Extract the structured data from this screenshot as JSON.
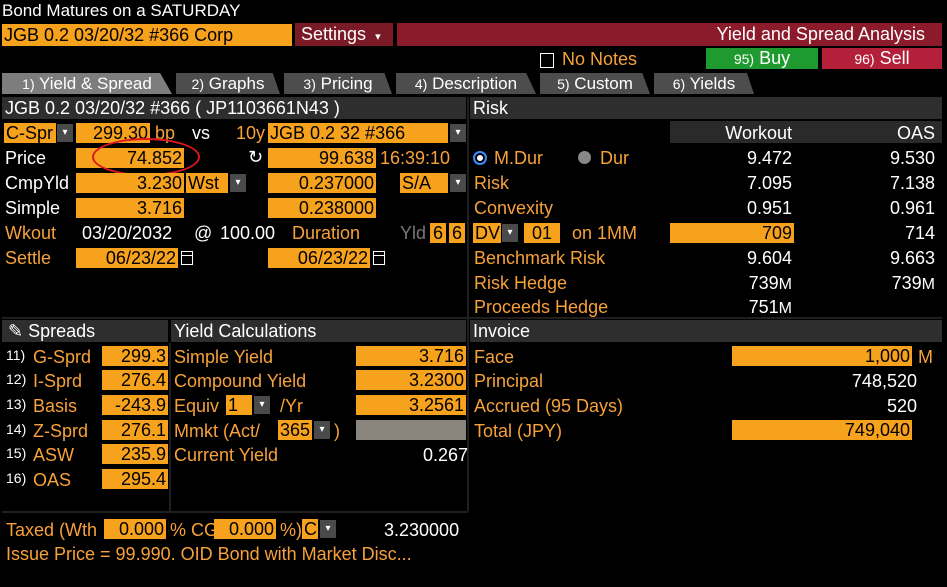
{
  "title": "Bond Matures on a SATURDAY",
  "security_field": "JGB 0.2 03/20/32 #366 Corp",
  "settings_label": "Settings",
  "settings_arrow": "▾",
  "function_title": "Yield and Spread Analysis",
  "notes": {
    "icon": "note-icon",
    "label": "No Notes"
  },
  "buy": {
    "num": "95)",
    "label": "Buy"
  },
  "sell": {
    "num": "96)",
    "label": "Sell"
  },
  "tabs": [
    {
      "num": "1)",
      "label": "Yield & Spread"
    },
    {
      "num": "2)",
      "label": "Graphs"
    },
    {
      "num": "3)",
      "label": "Pricing"
    },
    {
      "num": "4)",
      "label": "Description"
    },
    {
      "num": "5)",
      "label": "Custom"
    },
    {
      "num": "6)",
      "label": "Yields"
    }
  ],
  "bond_header": "JGB 0.2 03/20/32 #366 ( JP1103661N43 )",
  "left": {
    "spread_type": "C-Spr",
    "spread_value": "299.30",
    "spread_unit": "bp",
    "vs": "vs",
    "benchmark_tenor": "10y",
    "benchmark": "JGB 0.2 32 #366",
    "price_label": "Price",
    "price": "74.852",
    "bench_price": "99.638",
    "bench_time": "16:39:10",
    "cmpyld_label": "CmpYld",
    "cmpyld": "3.230",
    "cmpyld_type": "Wst",
    "bench_cmpyld": "0.237000",
    "sa": "S/A",
    "simple_label": "Simple",
    "simple": "3.716",
    "bench_simple": "0.238000",
    "wkout_label": "Wkout",
    "wkout_date": "03/20/2032",
    "wkout_at": "@",
    "wkout_price": "100.00",
    "duration_label": "Duration",
    "yld_label": "Yld",
    "yld_a": "6",
    "yld_b": "6",
    "settle_label": "Settle",
    "settle_date": "06/23/22",
    "bench_settle": "06/23/22"
  },
  "risk": {
    "header": "Risk",
    "col_workout": "Workout",
    "col_oas": "OAS",
    "mdur_label": "M.Dur",
    "dur_label": "Dur",
    "mdur_workout": "9.472",
    "mdur_oas": "9.530",
    "risk_label": "Risk",
    "risk_workout": "7.095",
    "risk_oas": "7.138",
    "convexity_label": "Convexity",
    "convexity_workout": "0.951",
    "convexity_oas": "0.961",
    "dv_label": "DV",
    "dv_value": "01",
    "dv_on": "on 1MM",
    "dv_workout": "709",
    "dv_oas": "714",
    "bench_risk_label": "Benchmark Risk",
    "bench_risk_workout": "9.604",
    "bench_risk_oas": "9.663",
    "risk_hedge_label": "Risk Hedge",
    "risk_hedge_workout": "739",
    "risk_hedge_oas": "739",
    "proceeds_hedge_label": "Proceeds Hedge",
    "proceeds_hedge_workout": "751",
    "unit_m": "M"
  },
  "spreads": {
    "header": "Spreads",
    "items": [
      {
        "num": "11)",
        "label": "G-Sprd",
        "value": "299.3"
      },
      {
        "num": "12)",
        "label": "I-Sprd",
        "value": "276.4"
      },
      {
        "num": "13)",
        "label": "Basis",
        "value": "-243.9"
      },
      {
        "num": "14)",
        "label": "Z-Sprd",
        "value": "276.1"
      },
      {
        "num": "15)",
        "label": "ASW",
        "value": "235.9"
      },
      {
        "num": "16)",
        "label": "OAS",
        "value": "295.4"
      }
    ]
  },
  "yield_calc": {
    "header": "Yield Calculations",
    "simple_label": "Simple Yield",
    "simple": "3.716",
    "compound_label": "Compound Yield",
    "compound": "3.2300",
    "equiv_label": "Equiv",
    "equiv_n": "1",
    "per_yr": "/Yr",
    "equiv": "3.2561",
    "mmkt_label": "Mmkt (Act/",
    "mmkt_days": "365",
    "mmkt_close": ")",
    "current_label": "Current Yield",
    "current": "0.267"
  },
  "invoice": {
    "header": "Invoice",
    "face_label": "Face",
    "face": "1,000",
    "face_unit": "M",
    "principal_label": "Principal",
    "principal": "748,520",
    "accrued_label": "Accrued (95 Days)",
    "accrued": "520",
    "total_label": "Total (JPY)",
    "total": "749,040"
  },
  "footer": {
    "taxed_label": "Taxed (Wth",
    "wth": "0.000",
    "pct_cg": "% CG",
    "cg": "0.000",
    "pct_close": "%)",
    "c": "C",
    "value": "3.230000",
    "issue_note": "Issue Price = 99.990. OID Bond with Market Disc..."
  },
  "colors": {
    "orange": "#f7a21c",
    "amber_text": "#f7a13a",
    "red_bar": "#8b1a2a",
    "buy": "#1f9a2e",
    "sell": "#b4203a"
  }
}
